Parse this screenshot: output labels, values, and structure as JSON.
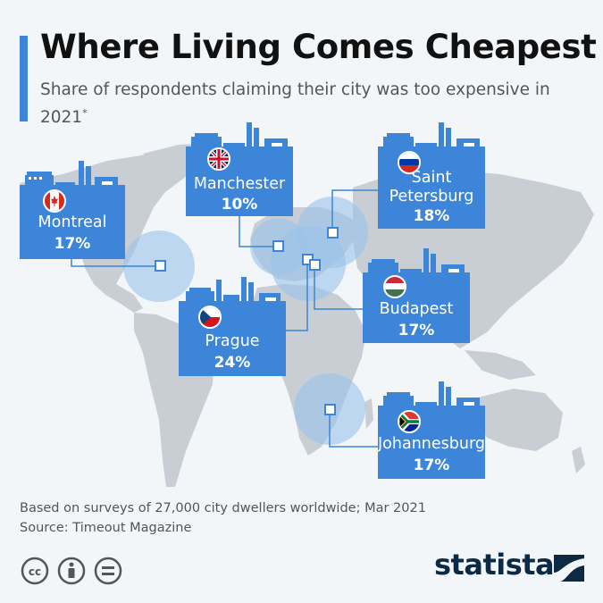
{
  "header": {
    "title": "Where Living Comes Cheapest",
    "subtitle": "Share of respondents claiming their city was too expensive in 2021",
    "subtitle_mark": "*"
  },
  "chart_data": {
    "type": "table",
    "title": "Where Living Comes Cheapest",
    "subtitle": "Share of respondents claiming their city was too expensive in 2021*",
    "unit": "%",
    "rows": [
      {
        "city": "Montreal",
        "flag": "canada-flag-icon",
        "value": 17
      },
      {
        "city": "Manchester",
        "flag": "uk-flag-icon",
        "value": 10
      },
      {
        "city": "Saint Petersburg",
        "flag": "russia-flag-icon",
        "value": 18
      },
      {
        "city": "Budapest",
        "flag": "hungary-flag-icon",
        "value": 17
      },
      {
        "city": "Prague",
        "flag": "czech-flag-icon",
        "value": 24
      },
      {
        "city": "Johannesburg",
        "flag": "south-africa-flag-icon",
        "value": 17
      }
    ]
  },
  "cards": {
    "montreal": {
      "name": "Montreal",
      "value": "17%"
    },
    "manchester": {
      "name": "Manchester",
      "value": "10%"
    },
    "saint_petersburg": {
      "name_line1": "Saint",
      "name_line2": "Petersburg",
      "value": "18%"
    },
    "budapest": {
      "name": "Budapest",
      "value": "17%"
    },
    "prague": {
      "name": "Prague",
      "value": "24%"
    },
    "johannesburg": {
      "name": "Johannesburg",
      "value": "17%"
    }
  },
  "footer": {
    "note": "Based on surveys of 27,000 city dwellers worldwide; Mar 2021",
    "source": "Source: Timeout Magazine",
    "logo": "statista"
  },
  "icons": [
    "creative-commons-icon",
    "attribution-icon",
    "no-derivatives-icon",
    "statista-logo-icon"
  ],
  "colors": {
    "accent": "#3d85d8",
    "map": "#c9ced4",
    "highlight": "#9ac3ea",
    "background": "#f3f6f9"
  }
}
